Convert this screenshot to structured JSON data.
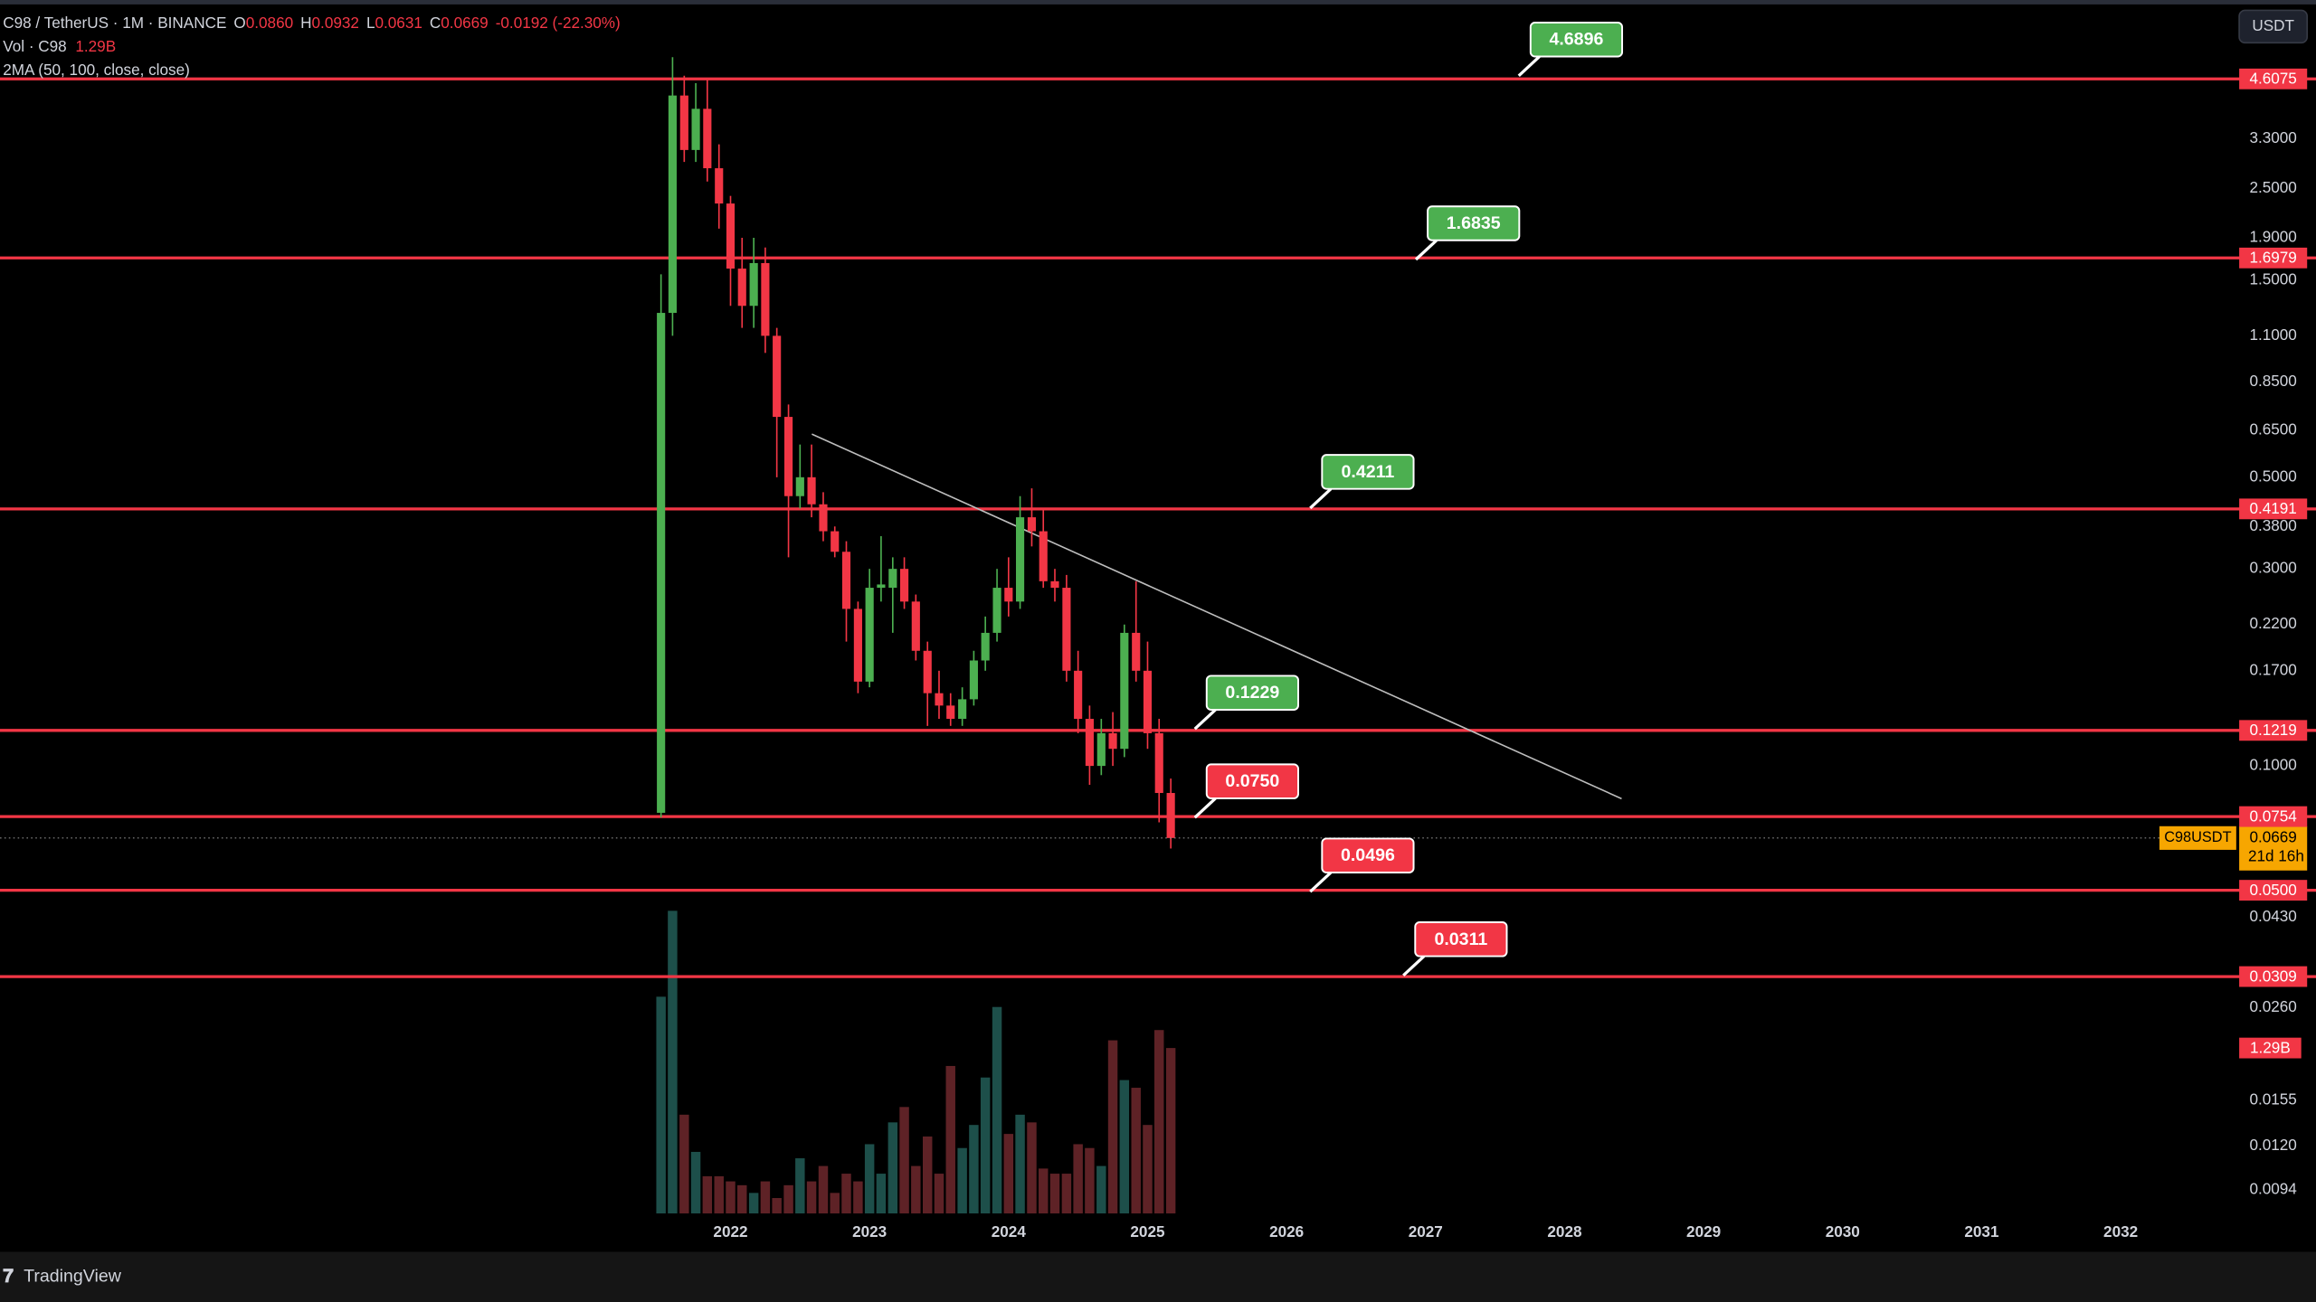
{
  "legend": {
    "symbol": "C98 / TetherUS · 1M · BINANCE",
    "open_key": "O",
    "open": "0.0860",
    "high_key": "H",
    "high": "0.0932",
    "low_key": "L",
    "low": "0.0631",
    "close_key": "C",
    "close": "0.0669",
    "change": "-0.0192 (-22.30%)",
    "volume_title": "Vol · C98",
    "volume": "1.29B",
    "indicator": "2MA (50, 100, close, close)"
  },
  "currency_button": "USDT",
  "symbol_badge": "C98USDT",
  "countdown": "21d 16h",
  "brand": "TradingView",
  "chart_data": {
    "type": "candlestick",
    "x": [
      2021.5,
      2021.583,
      2021.667,
      2021.75,
      2021.833,
      2021.917,
      2022.0,
      2022.083,
      2022.167,
      2022.25,
      2022.333,
      2022.417,
      2022.5,
      2022.583,
      2022.667,
      2022.75,
      2022.833,
      2022.917,
      2023.0,
      2023.083,
      2023.167,
      2023.25,
      2023.333,
      2023.417,
      2023.5,
      2023.583,
      2023.667,
      2023.75,
      2023.833,
      2023.917,
      2024.0,
      2024.083,
      2024.167,
      2024.25,
      2024.333,
      2024.417,
      2024.5,
      2024.583,
      2024.667,
      2024.75,
      2024.833,
      2024.917,
      2025.0,
      2025.083,
      2025.167
    ],
    "open": [
      0.077,
      1.25,
      4.2,
      3.1,
      3.9,
      2.8,
      2.3,
      1.6,
      1.3,
      1.65,
      1.1,
      0.7,
      0.45,
      0.5,
      0.43,
      0.37,
      0.33,
      0.24,
      0.16,
      0.27,
      0.27,
      0.3,
      0.25,
      0.19,
      0.15,
      0.14,
      0.13,
      0.145,
      0.18,
      0.21,
      0.27,
      0.25,
      0.4,
      0.37,
      0.28,
      0.27,
      0.17,
      0.13,
      0.1,
      0.12,
      0.11,
      0.21,
      0.17,
      0.12,
      0.086
    ],
    "high": [
      1.55,
      5.2,
      4.69,
      4.5,
      4.6,
      3.2,
      2.4,
      1.9,
      1.9,
      1.8,
      1.15,
      0.75,
      0.6,
      0.6,
      0.46,
      0.38,
      0.35,
      0.25,
      0.3,
      0.36,
      0.32,
      0.32,
      0.26,
      0.2,
      0.17,
      0.15,
      0.155,
      0.19,
      0.23,
      0.3,
      0.32,
      0.45,
      0.47,
      0.42,
      0.3,
      0.29,
      0.19,
      0.14,
      0.13,
      0.135,
      0.22,
      0.28,
      0.2,
      0.13,
      0.0932
    ],
    "low": [
      0.075,
      1.1,
      2.9,
      2.9,
      2.6,
      2.0,
      1.3,
      1.15,
      1.15,
      1.0,
      0.5,
      0.32,
      0.42,
      0.4,
      0.35,
      0.32,
      0.2,
      0.15,
      0.155,
      0.25,
      0.21,
      0.24,
      0.18,
      0.125,
      0.13,
      0.125,
      0.125,
      0.14,
      0.17,
      0.2,
      0.23,
      0.24,
      0.34,
      0.27,
      0.25,
      0.16,
      0.12,
      0.09,
      0.095,
      0.1,
      0.105,
      0.16,
      0.11,
      0.073,
      0.0631
    ],
    "close": [
      1.25,
      4.2,
      3.1,
      3.9,
      2.8,
      2.3,
      1.6,
      1.3,
      1.65,
      1.1,
      0.7,
      0.45,
      0.5,
      0.43,
      0.37,
      0.33,
      0.24,
      0.16,
      0.27,
      0.275,
      0.3,
      0.25,
      0.19,
      0.15,
      0.14,
      0.13,
      0.145,
      0.18,
      0.21,
      0.27,
      0.25,
      0.4,
      0.37,
      0.28,
      0.27,
      0.17,
      0.13,
      0.1,
      0.12,
      0.11,
      0.21,
      0.17,
      0.12,
      0.086,
      0.0669
    ],
    "volume": [
      1690000000,
      2360000000,
      770000000,
      480000000,
      290000000,
      290000000,
      250000000,
      220000000,
      160000000,
      250000000,
      120000000,
      220000000,
      430000000,
      250000000,
      370000000,
      160000000,
      310000000,
      250000000,
      540000000,
      310000000,
      710000000,
      830000000,
      370000000,
      600000000,
      310000000,
      1150000000,
      510000000,
      690000000,
      1060000000,
      1610000000,
      620000000,
      770000000,
      710000000,
      350000000,
      310000000,
      310000000,
      540000000,
      510000000,
      370000000,
      1350000000,
      1040000000,
      980000000,
      690000000,
      1430000000,
      1290000000
    ],
    "up_color": "#4caf50",
    "down_color": "#f23645",
    "volume_up_color": "#1d4f4a",
    "volume_down_color": "#5e2226",
    "log_scale": true,
    "ylim": [
      0.00825,
      6.865
    ],
    "yticks": [
      {
        "value": 3.3,
        "label": "3.3000"
      },
      {
        "value": 2.5,
        "label": "2.5000"
      },
      {
        "value": 1.9,
        "label": "1.9000"
      },
      {
        "value": 1.5,
        "label": "1.5000"
      },
      {
        "value": 1.1,
        "label": "1.1000"
      },
      {
        "value": 0.85,
        "label": "0.8500"
      },
      {
        "value": 0.65,
        "label": "0.6500"
      },
      {
        "value": 0.5,
        "label": "0.5000"
      },
      {
        "value": 0.38,
        "label": "0.3800"
      },
      {
        "value": 0.3,
        "label": "0.3000"
      },
      {
        "value": 0.22,
        "label": "0.2200"
      },
      {
        "value": 0.17,
        "label": "0.1700"
      },
      {
        "value": 0.1,
        "label": "0.1000"
      },
      {
        "value": 0.043,
        "label": "0.0430"
      },
      {
        "value": 0.026,
        "label": "0.0260"
      },
      {
        "value": 0.0155,
        "label": "0.0155"
      },
      {
        "value": 0.012,
        "label": "0.0120"
      },
      {
        "value": 0.0094,
        "label": "0.0094"
      }
    ],
    "xlim": [
      2016.745,
      2032.81
    ],
    "xticks": [
      2022,
      2023,
      2024,
      2025,
      2026,
      2027,
      2028,
      2029,
      2030,
      2031,
      2032
    ],
    "levels": {
      "values": [
        4.6075,
        1.6979,
        0.4191,
        0.1219,
        0.0754,
        0.05,
        0.0309
      ],
      "value_labels": [
        "4.6075",
        "1.6979",
        "0.4191",
        "0.1219",
        "0.0754",
        "0.0500",
        "0.0309"
      ],
      "color": "#f23645"
    },
    "callouts": [
      {
        "x": 2027.67,
        "value": 4.6896,
        "label": "4.6896",
        "color": "#4caf50"
      },
      {
        "x": 2026.93,
        "value": 1.6835,
        "label": "1.6835",
        "color": "#4caf50"
      },
      {
        "x": 2026.17,
        "value": 0.4211,
        "label": "0.4211",
        "color": "#4caf50"
      },
      {
        "x": 2025.34,
        "value": 0.1229,
        "label": "0.1229",
        "color": "#4caf50"
      },
      {
        "x": 2025.34,
        "value": 0.075,
        "label": "0.0750",
        "color": "#f23645"
      },
      {
        "x": 2026.17,
        "value": 0.0496,
        "label": "0.0496",
        "color": "#f23645"
      },
      {
        "x": 2026.84,
        "value": 0.0311,
        "label": "0.0311",
        "color": "#f23645"
      }
    ],
    "trendline": {
      "x": [
        2022.585,
        2028.41
      ],
      "values": [
        0.636,
        0.0833
      ],
      "color": "#bdbdbd"
    },
    "last_price_color": "#f7a600"
  }
}
